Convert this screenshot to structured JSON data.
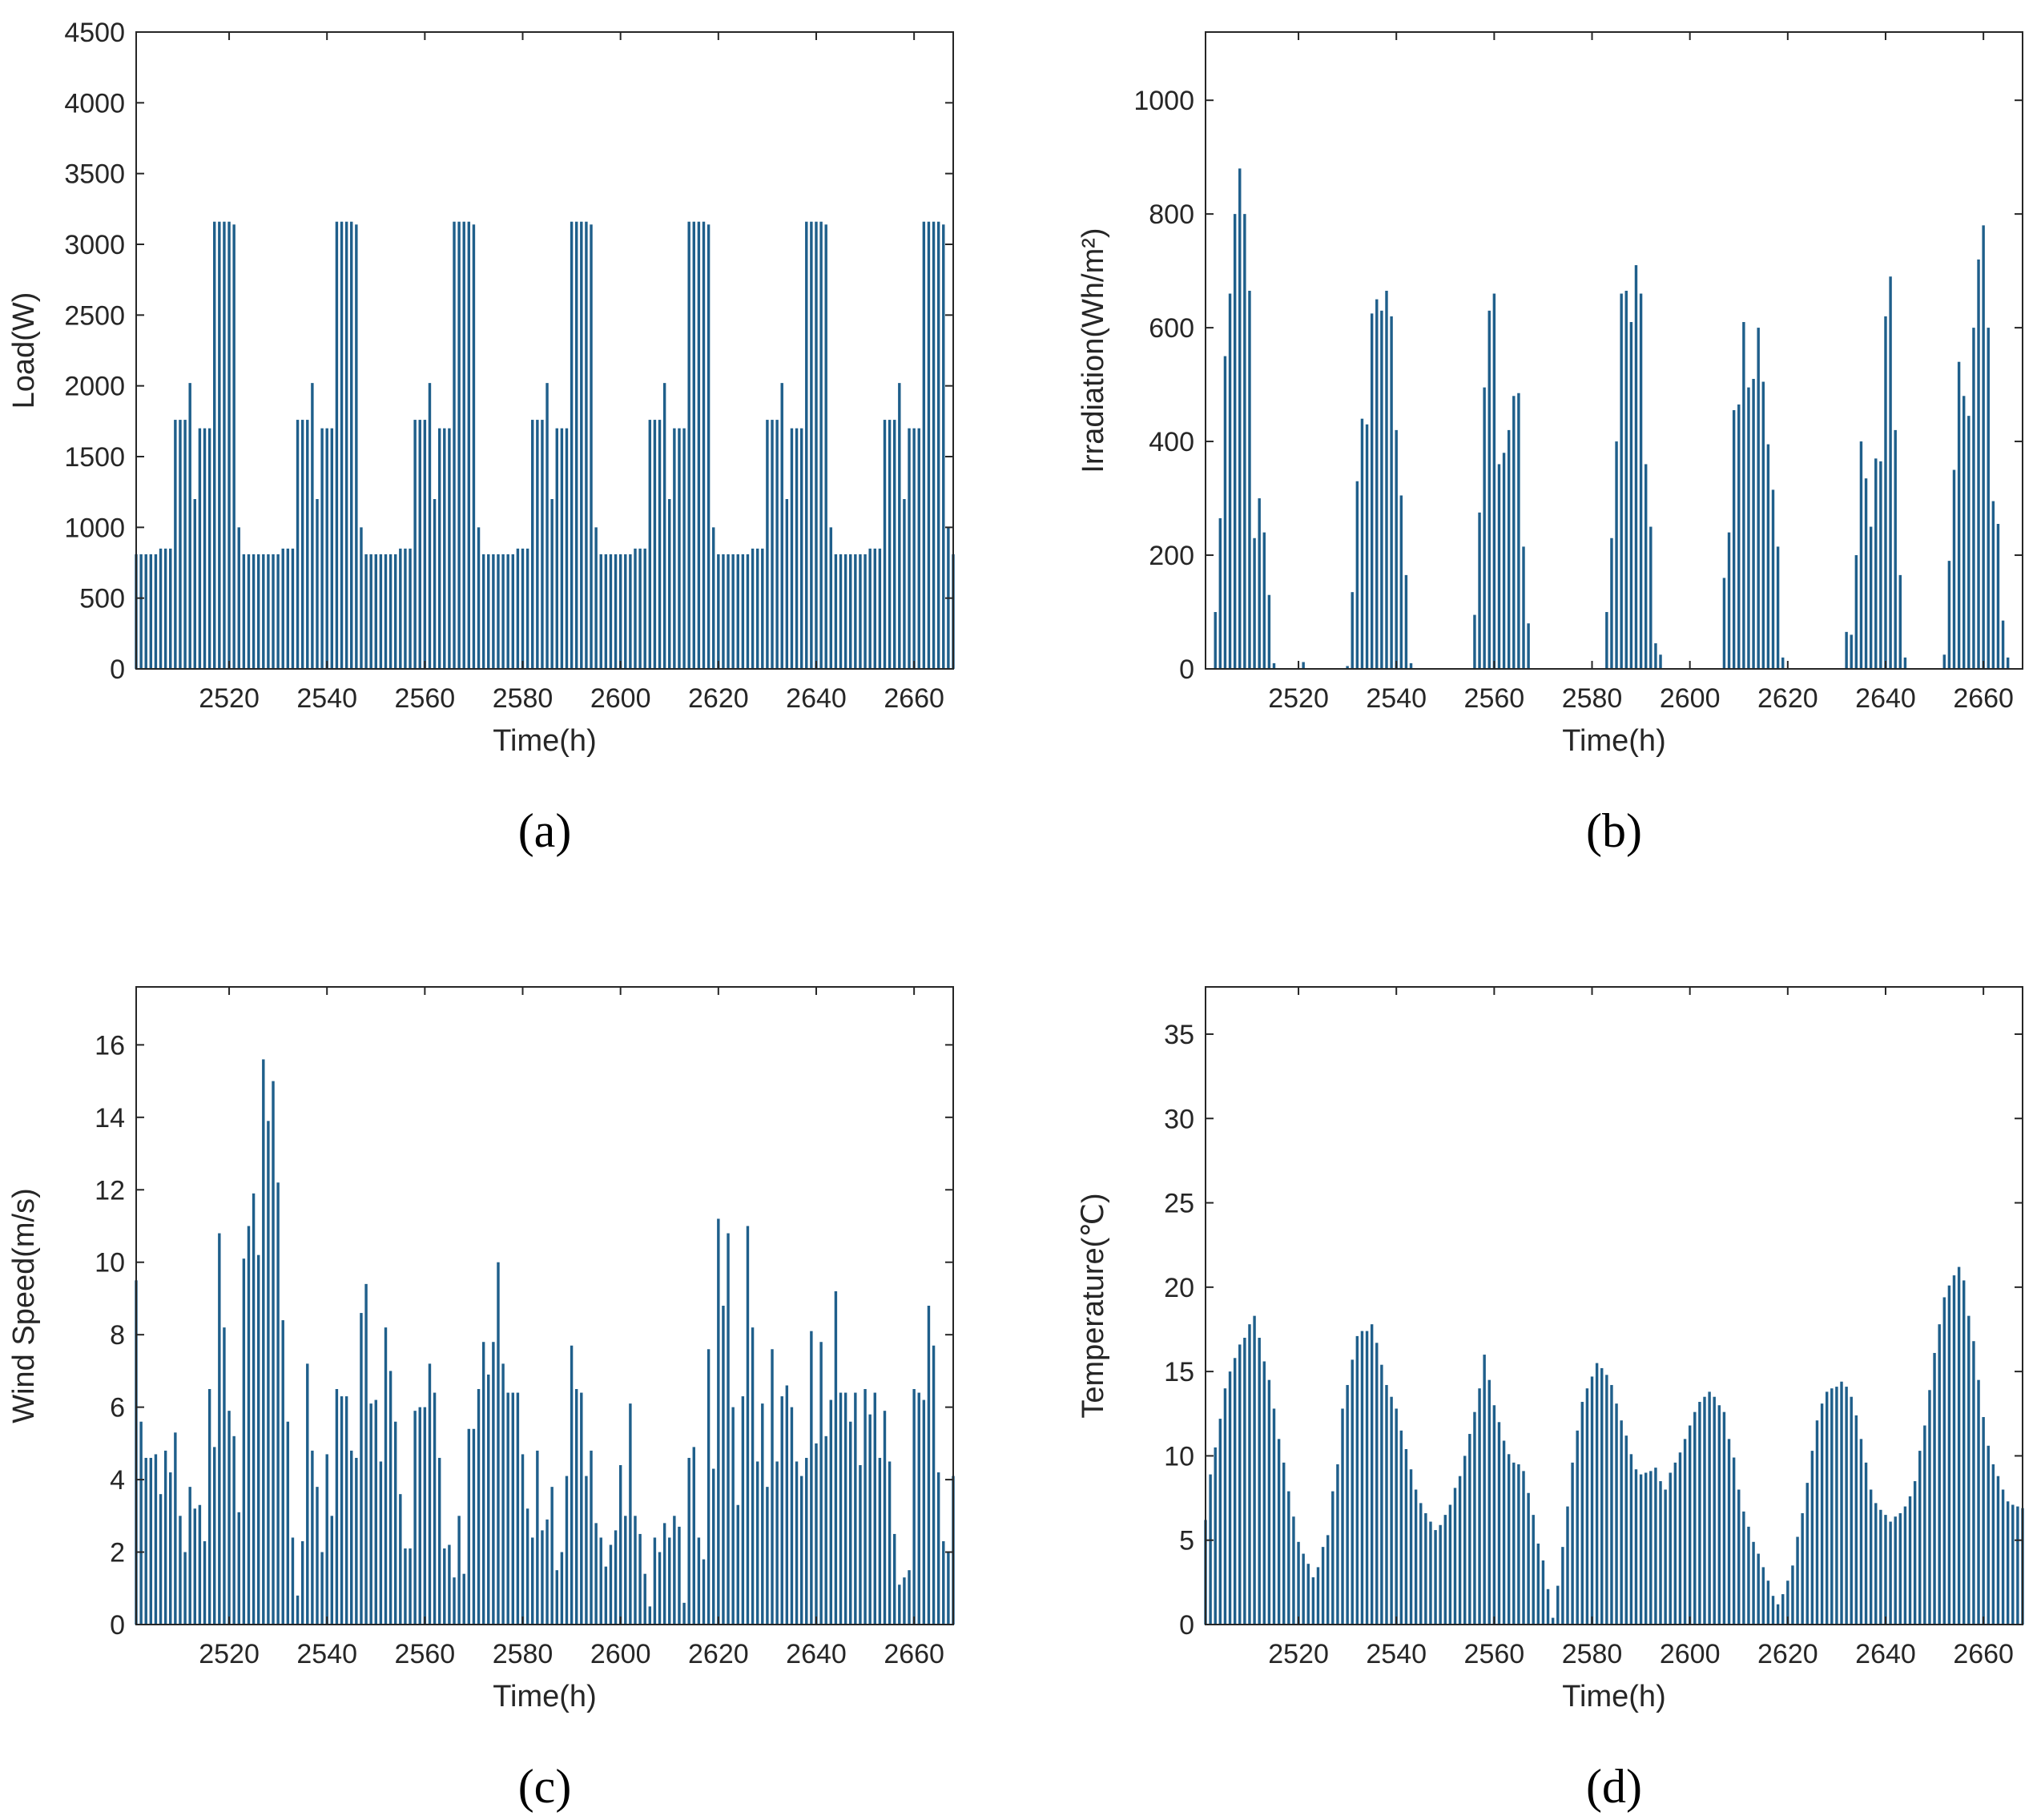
{
  "colors": {
    "bar": "#1f5f8b",
    "axis": "#262626"
  },
  "chart_data": [
    {
      "id": "a",
      "type": "bar",
      "panel_label": "(a)",
      "xlabel": "Time(h)",
      "ylabel": "Load(W)",
      "xlim": [
        2501,
        2668
      ],
      "ylim": [
        0,
        4500
      ],
      "xticks": [
        2520,
        2540,
        2560,
        2580,
        2600,
        2620,
        2640,
        2660
      ],
      "yticks": [
        0,
        500,
        1000,
        1500,
        2000,
        2500,
        3000,
        3500,
        4000,
        4500
      ],
      "x_start": 2501,
      "values": [
        810,
        810,
        810,
        810,
        810,
        850,
        850,
        850,
        1760,
        1760,
        1760,
        2020,
        1200,
        1700,
        1700,
        1700,
        3160,
        3160,
        3160,
        3160,
        3140,
        1000,
        810,
        810,
        810,
        810,
        810,
        810,
        810,
        810,
        850,
        850,
        850,
        1760,
        1760,
        1760,
        2020,
        1200,
        1700,
        1700,
        1700,
        3160,
        3160,
        3160,
        3160,
        3140,
        1000,
        810,
        810,
        810,
        810,
        810,
        810,
        810,
        850,
        850,
        850,
        1760,
        1760,
        1760,
        2020,
        1200,
        1700,
        1700,
        1700,
        3160,
        3160,
        3160,
        3160,
        3140,
        1000,
        810,
        810,
        810,
        810,
        810,
        810,
        810,
        850,
        850,
        850,
        1760,
        1760,
        1760,
        2020,
        1200,
        1700,
        1700,
        1700,
        3160,
        3160,
        3160,
        3160,
        3140,
        1000,
        810,
        810,
        810,
        810,
        810,
        810,
        810,
        850,
        850,
        850,
        1760,
        1760,
        1760,
        2020,
        1200,
        1700,
        1700,
        1700,
        3160,
        3160,
        3160,
        3160,
        3140,
        1000,
        810,
        810,
        810,
        810,
        810,
        810,
        810,
        850,
        850,
        850,
        1760,
        1760,
        1760,
        2020,
        1200,
        1700,
        1700,
        1700,
        3160,
        3160,
        3160,
        3160,
        3140,
        1000,
        810,
        810,
        810,
        810,
        810,
        810,
        810,
        850,
        850,
        850,
        1760,
        1760,
        1760,
        2020,
        1200,
        1700,
        1700,
        1700,
        3160,
        3160,
        3160,
        3160,
        3140,
        1000,
        810
      ]
    },
    {
      "id": "b",
      "type": "bar",
      "panel_label": "(b)",
      "xlabel": "Time(h)",
      "ylabel": "Irradiation(Wh/m²)",
      "xlim": [
        2501,
        2668
      ],
      "ylim": [
        0,
        1120
      ],
      "xticks": [
        2520,
        2540,
        2560,
        2580,
        2600,
        2620,
        2640,
        2660
      ],
      "yticks": [
        0,
        200,
        400,
        600,
        800,
        1000
      ],
      "x_start": 2501,
      "values": [
        0,
        0,
        100,
        265,
        550,
        660,
        800,
        880,
        800,
        665,
        230,
        300,
        240,
        130,
        10,
        0,
        0,
        0,
        0,
        0,
        12,
        0,
        0,
        0,
        0,
        0,
        0,
        0,
        0,
        5,
        135,
        330,
        440,
        430,
        625,
        650,
        630,
        665,
        620,
        420,
        305,
        165,
        10,
        0,
        0,
        0,
        0,
        0,
        0,
        0,
        0,
        0,
        0,
        0,
        0,
        95,
        275,
        495,
        630,
        660,
        360,
        380,
        420,
        480,
        485,
        215,
        80,
        0,
        0,
        0,
        0,
        0,
        0,
        0,
        0,
        0,
        0,
        0,
        0,
        0,
        0,
        0,
        100,
        230,
        400,
        660,
        665,
        610,
        710,
        660,
        360,
        250,
        45,
        25,
        0,
        0,
        0,
        0,
        0,
        0,
        0,
        0,
        0,
        0,
        0,
        0,
        160,
        240,
        455,
        465,
        610,
        495,
        510,
        600,
        505,
        395,
        315,
        215,
        20,
        0,
        0,
        0,
        0,
        0,
        0,
        0,
        0,
        0,
        0,
        0,
        0,
        65,
        60,
        200,
        400,
        335,
        250,
        370,
        365,
        620,
        690,
        420,
        165,
        20,
        0,
        0,
        0,
        0,
        0,
        0,
        0,
        25,
        190,
        350,
        540,
        480,
        445,
        600,
        720,
        780,
        600,
        295,
        255,
        85,
        20,
        0,
        0,
        0
      ]
    },
    {
      "id": "c",
      "type": "bar",
      "panel_label": "(c)",
      "xlabel": "Time(h)",
      "ylabel": "Wind Speed(m/s)",
      "xlim": [
        2501,
        2668
      ],
      "ylim": [
        0,
        17.6
      ],
      "xticks": [
        2520,
        2540,
        2560,
        2580,
        2600,
        2620,
        2640,
        2660
      ],
      "yticks": [
        0,
        2,
        4,
        6,
        8,
        10,
        12,
        14,
        16
      ],
      "x_start": 2501,
      "values": [
        9.5,
        5.6,
        4.6,
        4.6,
        4.7,
        3.6,
        4.8,
        4.2,
        5.3,
        3.0,
        2.0,
        3.8,
        3.2,
        3.3,
        2.3,
        6.5,
        4.9,
        10.8,
        8.2,
        5.9,
        5.2,
        3.1,
        10.1,
        11.0,
        11.9,
        10.2,
        15.6,
        13.9,
        15.0,
        12.2,
        8.4,
        5.6,
        2.4,
        0.8,
        2.3,
        7.2,
        4.8,
        3.8,
        2.0,
        4.7,
        3.0,
        6.5,
        6.3,
        6.3,
        4.8,
        4.6,
        8.6,
        9.4,
        6.1,
        6.2,
        4.5,
        8.2,
        7.0,
        5.6,
        3.6,
        2.1,
        2.1,
        5.9,
        6.0,
        6.0,
        7.2,
        6.4,
        4.6,
        2.1,
        2.2,
        1.3,
        3.0,
        1.4,
        5.4,
        5.4,
        6.5,
        7.8,
        6.9,
        7.8,
        10.0,
        7.2,
        6.4,
        6.4,
        6.4,
        4.7,
        3.2,
        2.4,
        4.8,
        2.6,
        2.9,
        3.8,
        1.5,
        2.0,
        4.1,
        7.7,
        6.5,
        6.4,
        4.1,
        4.8,
        2.8,
        2.4,
        1.6,
        2.2,
        2.6,
        4.4,
        3.0,
        6.1,
        3.0,
        2.5,
        1.4,
        0.5,
        2.4,
        2.0,
        2.8,
        2.4,
        3.0,
        2.7,
        0.6,
        4.6,
        4.9,
        2.4,
        1.8,
        7.6,
        4.3,
        11.2,
        8.8,
        10.8,
        6.0,
        3.3,
        6.3,
        11.0,
        8.2,
        4.5,
        6.1,
        3.8,
        7.6,
        4.5,
        6.3,
        6.6,
        6.0,
        4.5,
        4.1,
        4.6,
        8.1,
        5.0,
        7.8,
        5.2,
        6.2,
        9.2,
        6.4,
        6.4,
        5.6,
        6.4,
        4.4,
        6.5,
        5.8,
        6.4,
        4.6,
        5.9,
        4.5,
        2.5,
        1.1,
        1.3,
        1.5,
        6.5,
        6.4,
        6.2,
        8.8,
        7.7,
        4.2,
        2.3,
        2.0,
        4.1
      ]
    },
    {
      "id": "d",
      "type": "bar",
      "panel_label": "(d)",
      "xlabel": "Time(h)",
      "ylabel": "Temperature(℃)",
      "xlim": [
        2501,
        2668
      ],
      "ylim": [
        0,
        37.8
      ],
      "xticks": [
        2520,
        2540,
        2560,
        2580,
        2600,
        2620,
        2640,
        2660
      ],
      "yticks": [
        0,
        5,
        10,
        15,
        20,
        25,
        30,
        35
      ],
      "x_start": 2501,
      "values": [
        6.2,
        8.9,
        10.5,
        12.2,
        14.0,
        15.0,
        15.8,
        16.6,
        17.0,
        17.8,
        18.3,
        17.0,
        15.6,
        14.5,
        12.8,
        11.0,
        9.6,
        7.9,
        6.4,
        4.9,
        4.2,
        3.6,
        2.8,
        3.4,
        4.6,
        5.3,
        7.9,
        9.5,
        12.8,
        14.2,
        15.7,
        17.1,
        17.4,
        17.4,
        17.8,
        16.7,
        15.4,
        14.2,
        13.5,
        12.8,
        11.5,
        10.4,
        9.2,
        8.0,
        7.2,
        6.6,
        6.1,
        5.6,
        5.9,
        6.5,
        7.1,
        8.1,
        8.8,
        10.0,
        11.3,
        12.6,
        14.0,
        16.0,
        14.5,
        13.0,
        12.0,
        10.9,
        10.1,
        9.6,
        9.5,
        9.1,
        7.8,
        6.5,
        4.8,
        3.8,
        2.1,
        0.4,
        2.3,
        4.6,
        7.0,
        9.6,
        11.5,
        13.2,
        14.0,
        14.7,
        15.5,
        15.2,
        14.8,
        14.2,
        13.1,
        12.1,
        11.2,
        10.1,
        9.2,
        8.9,
        9.0,
        9.1,
        9.3,
        8.5,
        8.0,
        9.0,
        9.6,
        10.2,
        11.0,
        11.8,
        12.6,
        13.2,
        13.5,
        13.8,
        13.5,
        13.0,
        12.6,
        11.0,
        9.9,
        8.0,
        6.7,
        5.8,
        4.9,
        4.2,
        3.4,
        2.6,
        1.7,
        1.2,
        1.8,
        2.6,
        3.5,
        5.2,
        6.6,
        8.4,
        10.3,
        12.1,
        13.1,
        13.8,
        14.0,
        14.1,
        14.4,
        14.1,
        13.5,
        12.4,
        11.0,
        9.6,
        8.0,
        7.2,
        6.8,
        6.5,
        6.1,
        6.4,
        6.6,
        7.0,
        7.6,
        8.5,
        10.3,
        11.8,
        13.9,
        16.1,
        17.8,
        19.4,
        20.1,
        20.7,
        21.2,
        20.4,
        18.3,
        16.8,
        14.5,
        12.3,
        10.6,
        9.5,
        8.8,
        8.0,
        7.3,
        7.1,
        7.0,
        6.9
      ]
    }
  ]
}
